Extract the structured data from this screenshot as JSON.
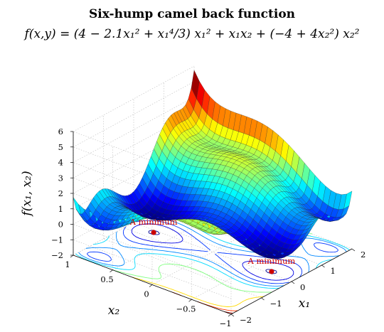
{
  "chart_data": {
    "type": "surface",
    "title": "Six-hump camel back function",
    "subtitle": "f(x,y) = (4 − 2.1x₁² + x₁⁴/3) x₁² + x₁x₂ + (−4 + 4x₂²) x₂²",
    "xlabel": "x₁",
    "ylabel": "x₂",
    "zlabel": "f(x₁, x₂)",
    "xlim": [
      -2,
      2
    ],
    "ylim": [
      -1,
      1
    ],
    "zlim": [
      -2,
      6
    ],
    "xticks": [
      "−2",
      "−1",
      "0",
      "1",
      "2"
    ],
    "yticks": [
      "−1",
      "−0.5",
      "0",
      "0.5",
      "1"
    ],
    "zticks": [
      "−2",
      "−1",
      "0",
      "1",
      "2",
      "3",
      "4",
      "5",
      "6"
    ],
    "grid": true,
    "colormap": "jet",
    "contour_levels": [
      -1,
      -0.5,
      0,
      0.5,
      1,
      2,
      3,
      4,
      5
    ],
    "annotations": [
      {
        "text": "A minimum",
        "x1": -0.0898,
        "x2": 0.7126,
        "f": -1.0316
      },
      {
        "text": "A minimum",
        "x1": 0.0898,
        "x2": -0.7126,
        "f": -1.0316
      }
    ],
    "annotation_color": "#cc0000"
  }
}
